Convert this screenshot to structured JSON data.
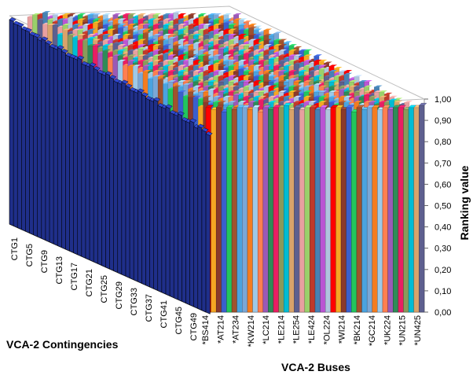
{
  "chart_data": {
    "type": "bar3d",
    "z_axis": {
      "label": "Ranking value",
      "range": [
        0.0,
        1.0
      ],
      "ticks": [
        "0,00",
        "0,10",
        "0,20",
        "0,30",
        "0,40",
        "0,50",
        "0,60",
        "0,70",
        "0,80",
        "0,90",
        "1,00"
      ]
    },
    "contingency_axis": {
      "label": "VCA-2 Contingencies",
      "tick_labels": [
        "CTG1",
        "CTG5",
        "CTG9",
        "CTG13",
        "CTG17",
        "CTG21",
        "CTG25",
        "CTG29",
        "CTG33",
        "CTG37",
        "CTG41",
        "CTG45",
        "CTG49"
      ]
    },
    "bus_axis": {
      "label": "VCA-2 Buses",
      "tick_labels": [
        "*BS414",
        "*AT214",
        "*AT234",
        "*KW214",
        "*LC214",
        "*LE214",
        "*LE254",
        "*LE424",
        "*OL224",
        "*WI214",
        "*BK214",
        "*GC214",
        "*UK224",
        "*UN215",
        "*UN425"
      ]
    },
    "front_contingency_series": {
      "values": [
        1.0,
        0.99,
        0.99,
        0.98,
        0.98,
        0.97,
        0.97,
        0.96,
        0.97,
        0.96,
        0.95,
        0.95,
        0.96,
        0.95,
        0.94,
        0.94,
        0.94,
        0.95,
        0.93,
        0.93,
        0.94,
        0.93,
        0.92,
        0.92,
        0.93,
        0.92,
        0.91,
        0.91,
        0.92,
        0.91,
        0.9,
        0.9,
        0.91,
        0.9,
        0.89,
        0.89,
        0.9,
        0.88,
        0.88,
        0.89,
        0.87,
        0.87,
        0.88,
        0.86,
        0.86,
        0.87,
        0.85,
        0.86,
        0.85,
        0.84
      ]
    },
    "front_bus_series": {
      "values": [
        0.96,
        0.95,
        0.96,
        0.94,
        0.96,
        0.95,
        0.96,
        0.96,
        0.95,
        0.96,
        0.94,
        0.96,
        0.95,
        0.96,
        0.96,
        0.97,
        0.95,
        0.96,
        0.95,
        0.96,
        0.96,
        0.95,
        0.96,
        0.95,
        0.96,
        0.96,
        0.95,
        0.96,
        0.94,
        0.96,
        0.95,
        0.96,
        0.96,
        0.95,
        0.96,
        0.95,
        0.96,
        0.96,
        0.95,
        0.96,
        0.96,
        0.97
      ]
    },
    "colors": {
      "front_bars": "#1f2f8a",
      "bus_palette": [
        "#ff0000",
        "#f5a623",
        "#8b3a2b",
        "#3a5fcd",
        "#22c55e",
        "#a0522d",
        "#4aa3df",
        "#7aa7d6",
        "#f47c20",
        "#9ec9e8",
        "#ff7f50",
        "#9b59b6",
        "#2e8b57",
        "#e91e63",
        "#8a9a5b",
        "#00bcd4",
        "#d9a36a",
        "#5d5f8f",
        "#e8a0a0",
        "#9ad06a",
        "#c0392b",
        "#4682b4",
        "#ba55d3",
        "#b0c4de"
      ]
    }
  }
}
